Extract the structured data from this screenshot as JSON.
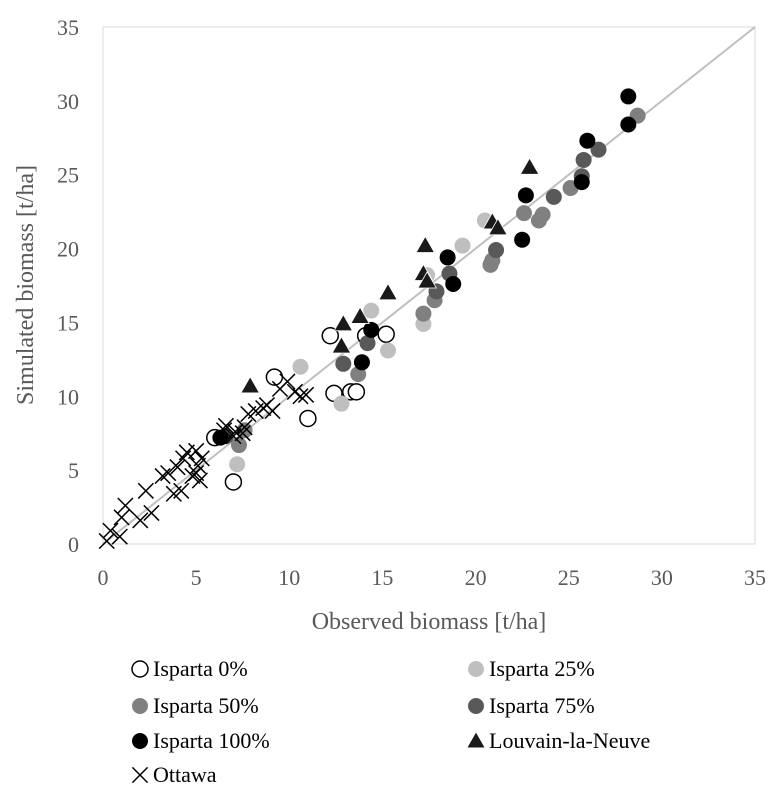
{
  "chart_data": {
    "type": "scatter",
    "title": "",
    "xlabel": "Observed biomass [t/ha]",
    "ylabel": "Simulated biomass [t/ha]",
    "xlim": [
      0,
      35
    ],
    "ylim": [
      0,
      35
    ],
    "xticks": [
      "0",
      "5",
      "10",
      "15",
      "20",
      "25",
      "30",
      "35"
    ],
    "yticks": [
      "0",
      "5",
      "10",
      "15",
      "20",
      "25",
      "30",
      "35"
    ],
    "grid": false,
    "reference_line": {
      "type": "1:1",
      "from": [
        0,
        0
      ],
      "to": [
        35,
        35
      ],
      "color": "#bfbfbf"
    },
    "legend_position": "bottom",
    "series": [
      {
        "name": "Isparta 0%",
        "marker": "open-circle",
        "color": "#000000",
        "points": [
          [
            6.0,
            7.2
          ],
          [
            7.0,
            4.2
          ],
          [
            9.2,
            11.3
          ],
          [
            11.0,
            8.5
          ],
          [
            12.2,
            14.1
          ],
          [
            12.4,
            10.2
          ],
          [
            13.3,
            10.3
          ],
          [
            13.6,
            10.3
          ],
          [
            14.1,
            14.1
          ],
          [
            15.2,
            14.2
          ]
        ]
      },
      {
        "name": "Isparta 25%",
        "marker": "filled-circle",
        "color": "#bfbfbf",
        "points": [
          [
            7.2,
            5.4
          ],
          [
            10.6,
            12.0
          ],
          [
            12.8,
            9.5
          ],
          [
            14.4,
            15.8
          ],
          [
            15.3,
            13.1
          ],
          [
            17.2,
            14.9
          ],
          [
            17.4,
            18.2
          ],
          [
            19.3,
            20.2
          ],
          [
            20.5,
            21.9
          ]
        ]
      },
      {
        "name": "Isparta 50%",
        "marker": "filled-circle",
        "color": "#808080",
        "points": [
          [
            7.3,
            6.7
          ],
          [
            7.6,
            7.7
          ],
          [
            13.7,
            11.5
          ],
          [
            17.2,
            15.6
          ],
          [
            17.8,
            16.5
          ],
          [
            20.8,
            18.9
          ],
          [
            20.9,
            19.2
          ],
          [
            22.6,
            22.4
          ],
          [
            23.4,
            21.9
          ],
          [
            23.6,
            22.3
          ],
          [
            25.1,
            24.1
          ],
          [
            28.7,
            29.0
          ]
        ]
      },
      {
        "name": "Isparta 75%",
        "marker": "filled-circle",
        "color": "#595959",
        "points": [
          [
            6.6,
            7.3
          ],
          [
            12.9,
            12.2
          ],
          [
            14.2,
            13.6
          ],
          [
            17.9,
            17.1
          ],
          [
            18.6,
            18.3
          ],
          [
            21.1,
            19.9
          ],
          [
            24.2,
            23.5
          ],
          [
            25.7,
            24.9
          ],
          [
            25.8,
            26.0
          ],
          [
            26.6,
            26.7
          ]
        ]
      },
      {
        "name": "Isparta 100%",
        "marker": "filled-circle",
        "color": "#000000",
        "points": [
          [
            6.3,
            7.2
          ],
          [
            13.9,
            12.3
          ],
          [
            14.4,
            14.5
          ],
          [
            18.5,
            19.4
          ],
          [
            18.8,
            17.6
          ],
          [
            22.5,
            20.6
          ],
          [
            22.7,
            23.6
          ],
          [
            25.7,
            24.5
          ],
          [
            26.0,
            27.3
          ],
          [
            28.2,
            30.3
          ],
          [
            28.2,
            28.4
          ]
        ]
      },
      {
        "name": "Louvain-la-Neuve",
        "marker": "filled-triangle",
        "color": "#1a1a1a",
        "points": [
          [
            7.9,
            10.7
          ],
          [
            12.8,
            13.4
          ],
          [
            12.9,
            14.9
          ],
          [
            13.8,
            15.4
          ],
          [
            15.3,
            17.0
          ],
          [
            17.2,
            18.3
          ],
          [
            17.3,
            20.2
          ],
          [
            17.4,
            17.8
          ],
          [
            20.9,
            21.8
          ],
          [
            21.2,
            21.4
          ],
          [
            22.9,
            25.5
          ]
        ]
      },
      {
        "name": "Ottawa",
        "marker": "x",
        "color": "#000000",
        "points": [
          [
            0.2,
            0.2
          ],
          [
            0.4,
            0.9
          ],
          [
            0.9,
            0.5
          ],
          [
            1.0,
            1.8
          ],
          [
            1.2,
            2.6
          ],
          [
            2.0,
            1.6
          ],
          [
            2.3,
            3.6
          ],
          [
            2.6,
            2.1
          ],
          [
            3.2,
            4.6
          ],
          [
            3.5,
            4.8
          ],
          [
            3.8,
            3.4
          ],
          [
            4.0,
            5.2
          ],
          [
            4.2,
            3.6
          ],
          [
            4.3,
            5.8
          ],
          [
            4.5,
            6.2
          ],
          [
            4.8,
            4.6
          ],
          [
            5.0,
            4.8
          ],
          [
            5.0,
            6.3
          ],
          [
            5.1,
            5.3
          ],
          [
            5.2,
            4.3
          ],
          [
            5.3,
            5.8
          ],
          [
            6.5,
            7.7
          ],
          [
            6.6,
            8.0
          ],
          [
            7.0,
            7.3
          ],
          [
            7.1,
            7.6
          ],
          [
            7.5,
            7.5
          ],
          [
            7.6,
            7.9
          ],
          [
            7.8,
            8.8
          ],
          [
            8.2,
            9.0
          ],
          [
            8.6,
            9.2
          ],
          [
            8.8,
            9.4
          ],
          [
            9.1,
            9.0
          ],
          [
            9.5,
            10.5
          ],
          [
            9.9,
            11.0
          ],
          [
            10.3,
            10.3
          ],
          [
            10.6,
            10.0
          ],
          [
            10.9,
            10.1
          ]
        ]
      }
    ]
  }
}
